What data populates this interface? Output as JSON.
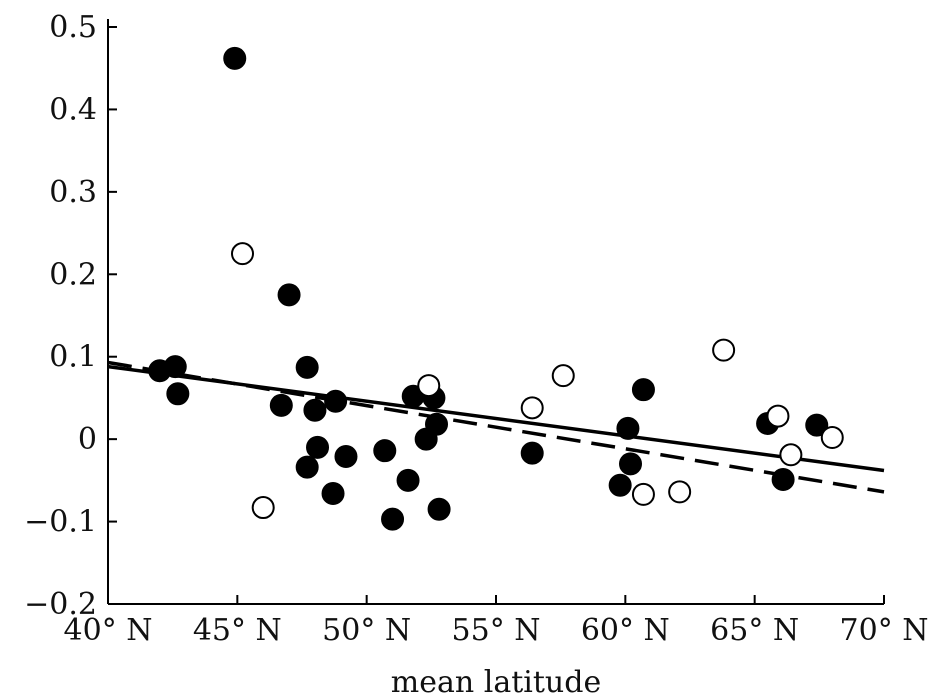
{
  "chart_data": {
    "type": "scatter",
    "title": "",
    "xlabel": "mean latitude",
    "ylabel": "",
    "xlim": [
      40,
      70
    ],
    "ylim": [
      -0.2,
      0.5
    ],
    "grid": false,
    "x_ticks": [
      {
        "value": 40,
        "label": "40° N"
      },
      {
        "value": 45,
        "label": "45° N"
      },
      {
        "value": 50,
        "label": "50° N"
      },
      {
        "value": 55,
        "label": "55° N"
      },
      {
        "value": 60,
        "label": "60° N"
      },
      {
        "value": 65,
        "label": "65° N"
      },
      {
        "value": 70,
        "label": "70° N"
      }
    ],
    "y_ticks": [
      {
        "value": -0.2,
        "label": "−0.2"
      },
      {
        "value": -0.1,
        "label": "−0.1"
      },
      {
        "value": 0,
        "label": "0"
      },
      {
        "value": 0.1,
        "label": "0.1"
      },
      {
        "value": 0.2,
        "label": "0.2"
      },
      {
        "value": 0.3,
        "label": "0.3"
      },
      {
        "value": 0.4,
        "label": "0.4"
      },
      {
        "value": 0.5,
        "label": "0.5"
      }
    ],
    "series": [
      {
        "marker": "filled-circle",
        "color": "#000000",
        "points": [
          [
            44.9,
            0.462
          ],
          [
            47.0,
            0.175
          ],
          [
            42.0,
            0.083
          ],
          [
            42.6,
            0.088
          ],
          [
            42.7,
            0.055
          ],
          [
            46.7,
            0.041
          ],
          [
            47.7,
            0.087
          ],
          [
            47.7,
            -0.034
          ],
          [
            48.0,
            0.035
          ],
          [
            48.1,
            -0.01
          ],
          [
            48.8,
            0.046
          ],
          [
            49.2,
            -0.021
          ],
          [
            48.7,
            -0.066
          ],
          [
            50.7,
            -0.014
          ],
          [
            51.0,
            -0.097
          ],
          [
            51.6,
            -0.05
          ],
          [
            51.8,
            0.052
          ],
          [
            52.3,
            0.0
          ],
          [
            52.6,
            0.05
          ],
          [
            52.7,
            0.018
          ],
          [
            52.8,
            -0.085
          ],
          [
            56.4,
            -0.017
          ],
          [
            59.8,
            -0.056
          ],
          [
            60.1,
            0.013
          ],
          [
            60.2,
            -0.03
          ],
          [
            60.7,
            0.06
          ],
          [
            65.5,
            0.019
          ],
          [
            66.1,
            -0.049
          ],
          [
            67.4,
            0.017
          ]
        ]
      },
      {
        "marker": "open-circle",
        "color": "#000000",
        "points": [
          [
            45.2,
            0.225
          ],
          [
            46.0,
            -0.083
          ],
          [
            52.4,
            0.065
          ],
          [
            56.4,
            0.038
          ],
          [
            57.6,
            0.077
          ],
          [
            60.7,
            -0.067
          ],
          [
            62.1,
            -0.064
          ],
          [
            63.8,
            0.108
          ],
          [
            65.9,
            0.028
          ],
          [
            66.4,
            -0.019
          ],
          [
            68.0,
            0.002
          ]
        ]
      }
    ],
    "lines": [
      {
        "style": "solid",
        "color": "#000000",
        "x": [
          40,
          70
        ],
        "y": [
          0.088,
          -0.038
        ]
      },
      {
        "style": "dashed",
        "color": "#000000",
        "x": [
          40,
          70
        ],
        "y": [
          0.093,
          -0.064
        ]
      }
    ]
  }
}
